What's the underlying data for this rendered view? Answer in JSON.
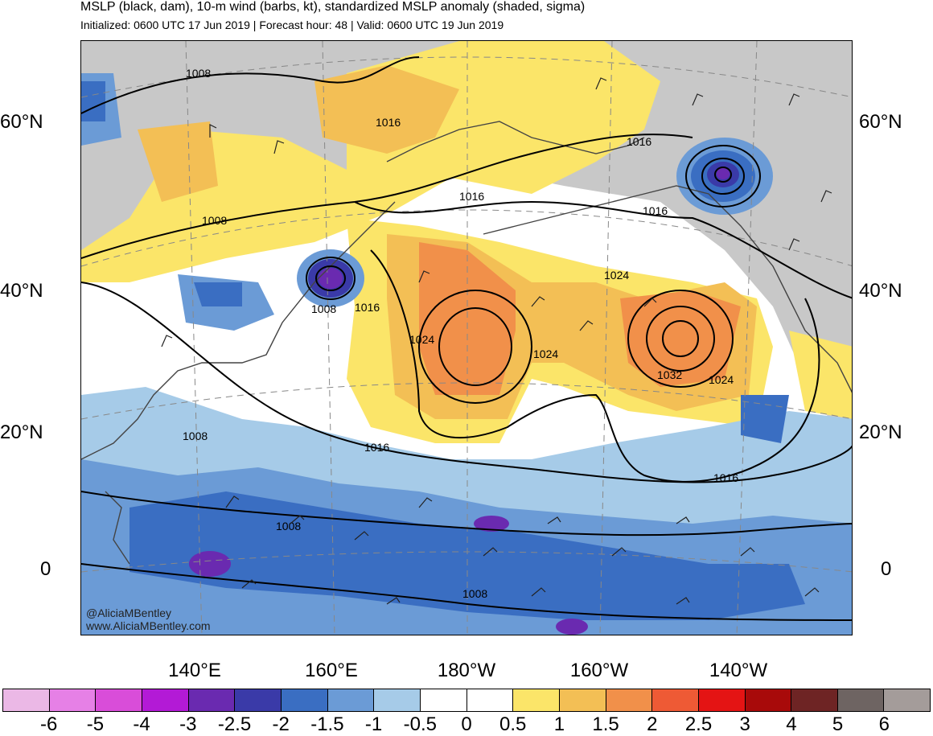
{
  "header": {
    "title": "MSLP (black, dam), 10-m wind (barbs, kt), standardized MSLP anomaly (shaded, sigma)",
    "subtitle": "Initialized: 0600 UTC 17 Jun 2019 | Forecast hour: 48 | Valid: 0600 UTC 19 Jun 2019"
  },
  "map": {
    "latitude_labels": [
      "60°N",
      "40°N",
      "20°N",
      "0"
    ],
    "longitude_labels": [
      "140°E",
      "160°E",
      "180°W",
      "160°W",
      "140°W"
    ],
    "isobar_labels": [
      "1008",
      "1016",
      "1016",
      "1016",
      "1016",
      "1008",
      "1008",
      "1016",
      "1024",
      "1024",
      "1024",
      "1032",
      "1024",
      "1008",
      "1016",
      "1016",
      "1008",
      "1008"
    ],
    "credits": {
      "handle": "@AliciaMBentley",
      "website": "www.AliciaMBentley.com"
    }
  },
  "colorbar": {
    "labels": [
      "-6",
      "-5",
      "-4",
      "-3",
      "-2.5",
      "-2",
      "-1.5",
      "-1",
      "-0.5",
      "0",
      "0.5",
      "1",
      "1.5",
      "2",
      "2.5",
      "3",
      "4",
      "5",
      "6"
    ],
    "colors": [
      "#ebb8e6",
      "#e680e6",
      "#d94dd9",
      "#b31ad6",
      "#6a2ab0",
      "#3a3aa8",
      "#3a6ec2",
      "#6b9bd6",
      "#a6cbe8",
      "#ffffff",
      "#ffffff",
      "#fbe569",
      "#f3bf55",
      "#f1904a",
      "#ee5a35",
      "#e41414",
      "#a80a0a",
      "#6e2424",
      "#6e6462",
      "#a49c9a"
    ]
  }
}
